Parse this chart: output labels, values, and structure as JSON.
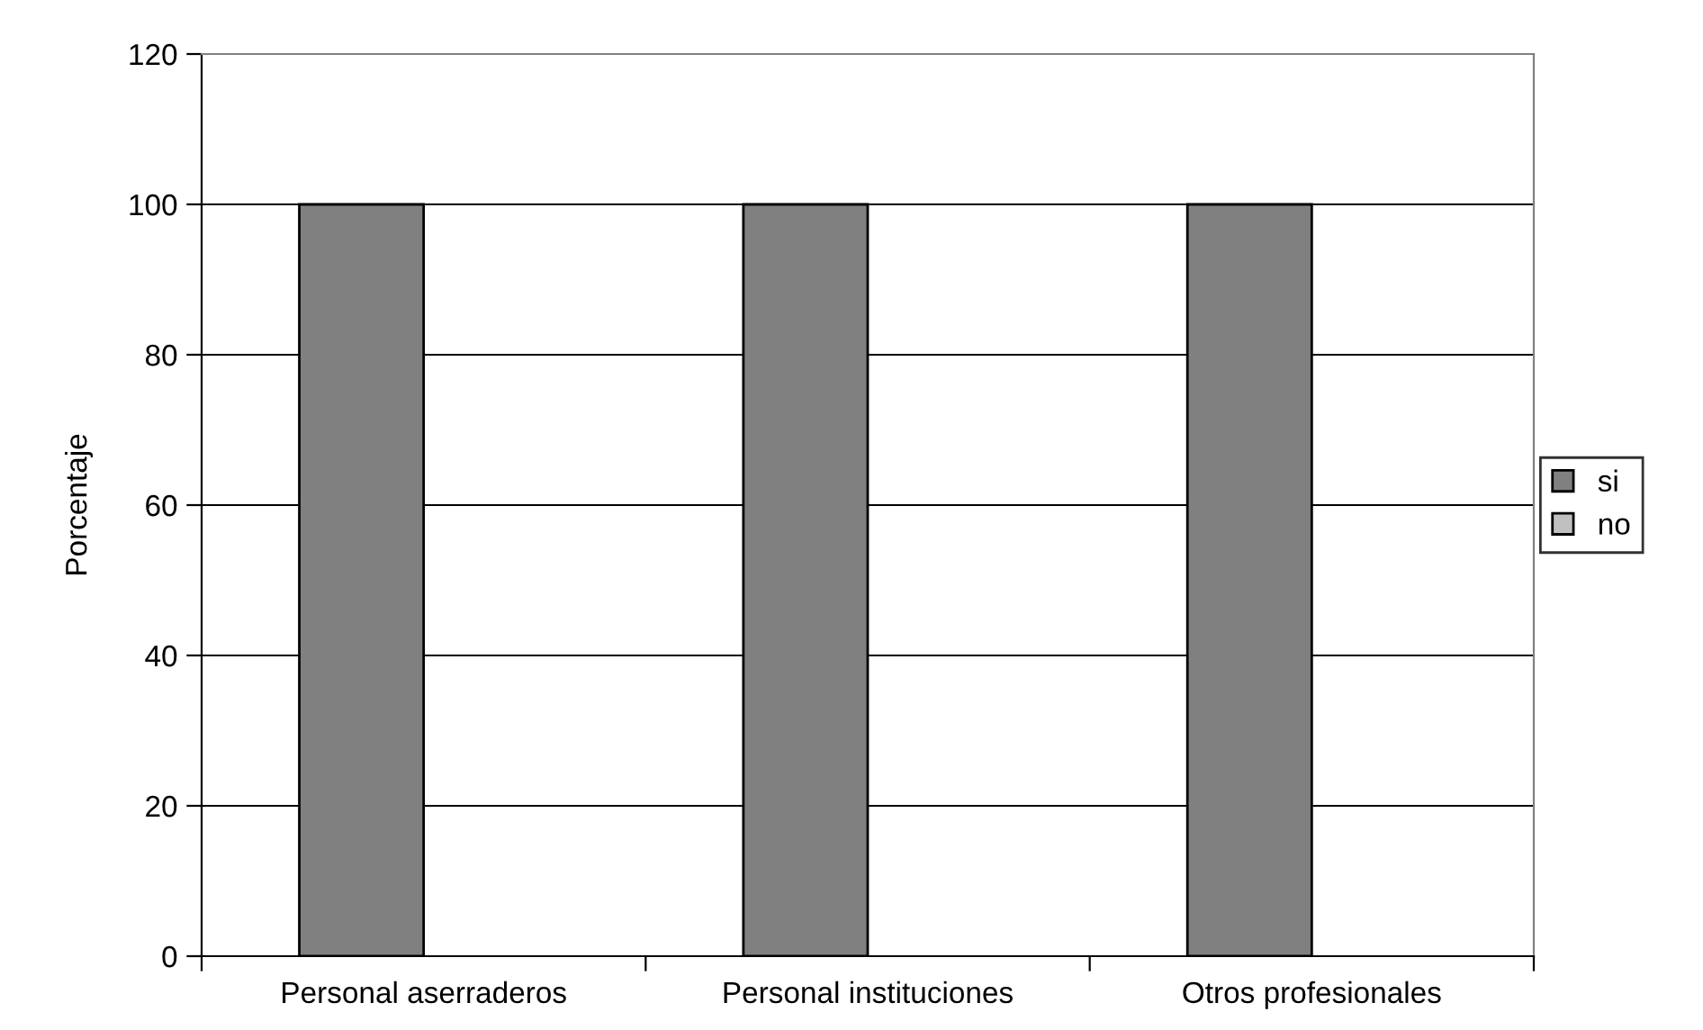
{
  "chart_data": {
    "type": "bar",
    "ylabel": "Porcentaje",
    "categories": [
      "Personal aserraderos",
      "Personal instituciones",
      "Otros profesionales"
    ],
    "series": [
      {
        "name": "si",
        "color": "#808080",
        "values": [
          100,
          100,
          100
        ]
      },
      {
        "name": "no",
        "color": "#c0c0c0",
        "values": [
          0,
          0,
          0
        ]
      }
    ],
    "ylim": [
      0,
      120
    ],
    "yticks": [
      0,
      20,
      40,
      60,
      80,
      100,
      120
    ],
    "grid": "y",
    "legend": "right"
  }
}
